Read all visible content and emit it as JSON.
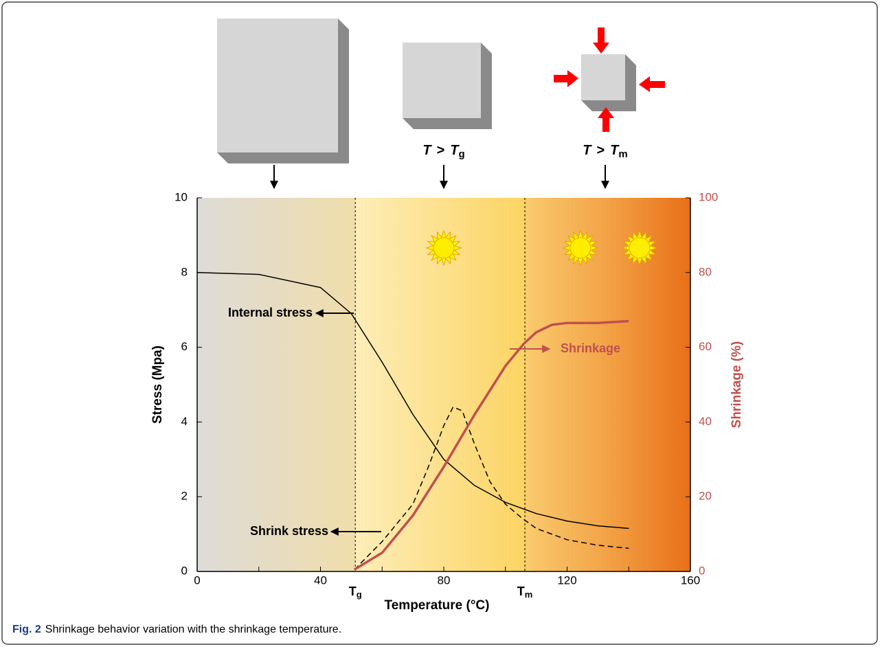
{
  "chart_data": {
    "type": "line",
    "x_label": "Temperature (°C)",
    "y_label": "Stress (Mpa)",
    "y2_label": "Shrinkage (%)",
    "xlim": [
      0,
      160
    ],
    "xticks": [
      0,
      40,
      80,
      120,
      160
    ],
    "xminor": [
      20,
      60,
      100,
      140
    ],
    "ylim": [
      0,
      10
    ],
    "yticks": [
      0,
      2,
      4,
      6,
      8,
      10
    ],
    "y2lim": [
      0,
      100
    ],
    "y2ticks": [
      0,
      20,
      40,
      60,
      80,
      100
    ],
    "series": [
      {
        "name": "Internal stress",
        "color": "#000000",
        "dash": false,
        "x": [
          0,
          20,
          40,
          50,
          60,
          70,
          80,
          90,
          100,
          110,
          120,
          130,
          140
        ],
        "values": [
          8.0,
          7.95,
          7.6,
          6.9,
          5.6,
          4.2,
          3.0,
          2.3,
          1.85,
          1.55,
          1.35,
          1.22,
          1.15
        ]
      },
      {
        "name": "Shrink stress",
        "color": "#000000",
        "dash": true,
        "x": [
          51,
          60,
          70,
          75,
          80,
          83,
          86,
          90,
          95,
          100,
          105,
          110,
          120,
          130,
          140
        ],
        "values": [
          0.05,
          0.8,
          1.8,
          2.8,
          3.9,
          4.4,
          4.3,
          3.4,
          2.4,
          1.8,
          1.45,
          1.15,
          0.85,
          0.7,
          0.62
        ]
      },
      {
        "name": "Shrinkage",
        "color": "#c0504d",
        "dash": false,
        "axis": "y2",
        "x": [
          51,
          60,
          70,
          80,
          90,
          100,
          106,
          110,
          115,
          120,
          130,
          140
        ],
        "values": [
          0.5,
          5,
          15,
          28,
          42,
          55,
          61,
          64,
          66,
          66.5,
          66.5,
          67
        ]
      }
    ],
    "markers": [
      {
        "x": 51.3,
        "label": "T",
        "sub": "g"
      },
      {
        "x": 106.3,
        "label": "T",
        "sub": "m"
      }
    ]
  },
  "panels": [
    {
      "op": null
    },
    {
      "var": "T",
      "op": ">",
      "sub": "g"
    },
    {
      "var": "T",
      "op": ">",
      "sub": "m"
    }
  ],
  "caption": {
    "label": "Fig. 2",
    "text": "Shrinkage behavior variation with the shrinkage temperature."
  }
}
